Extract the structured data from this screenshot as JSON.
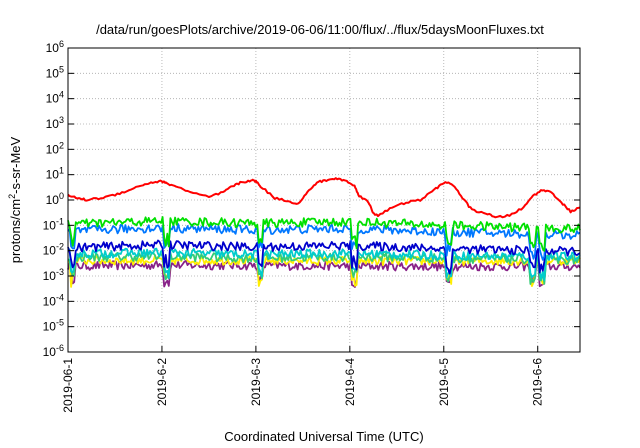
{
  "chart_data": {
    "type": "line",
    "title": "/data/run/goesPlots/archive/2019-06-06/11:00/flux/../flux/5daysMoonFluxes.txt",
    "xlabel": "Coordinated Universal Time (UTC)",
    "ylabel": "protons/cm²-s-sr-MeV",
    "ylabel_parts": {
      "pre": "protons/cm",
      "sup": "2",
      "post": "-s-sr-MeV"
    },
    "yscale": "log",
    "ylim_exp": [
      -6,
      6
    ],
    "y_ticks": [
      {
        "base": "10",
        "exp": "-6"
      },
      {
        "base": "10",
        "exp": "-5"
      },
      {
        "base": "10",
        "exp": "-4"
      },
      {
        "base": "10",
        "exp": "-3"
      },
      {
        "base": "10",
        "exp": "-2"
      },
      {
        "base": "10",
        "exp": "-1"
      },
      {
        "base": "10",
        "exp": "0"
      },
      {
        "base": "10",
        "exp": "1"
      },
      {
        "base": "10",
        "exp": "2"
      },
      {
        "base": "10",
        "exp": "3"
      },
      {
        "base": "10",
        "exp": "4"
      },
      {
        "base": "10",
        "exp": "5"
      },
      {
        "base": "10",
        "exp": "6"
      }
    ],
    "x_ticks": [
      "2019-06-1",
      "2019-6-2",
      "2019-6-3",
      "2019-6-4",
      "2019-6-5",
      "2019-6-6"
    ],
    "xlim_days": [
      0,
      5.45
    ],
    "grid": true,
    "series": [
      {
        "color": "#ff0000",
        "x_day": [
          0,
          0.1,
          0.2,
          0.35,
          0.5,
          0.65,
          0.8,
          0.9,
          1.0,
          1.05,
          1.15,
          1.3,
          1.5,
          1.65,
          1.75,
          1.85,
          1.95,
          2.0,
          2.05,
          2.2,
          2.35,
          2.45,
          2.55,
          2.65,
          2.75,
          2.85,
          2.95,
          3.05,
          3.1,
          3.2,
          3.25,
          3.3,
          3.45,
          3.6,
          3.75,
          3.9,
          4.0,
          4.1,
          4.2,
          4.3,
          4.45,
          4.55,
          4.7,
          4.85,
          4.95,
          5.05,
          5.15,
          5.25,
          5.35,
          5.45
        ],
        "y": [
          1.5,
          1.2,
          1.0,
          1.2,
          1.6,
          2.5,
          4,
          5,
          5.5,
          4.5,
          3.5,
          2.0,
          1.3,
          2.0,
          3.5,
          5,
          6,
          5.5,
          3.5,
          1.2,
          0.9,
          0.7,
          2.0,
          5,
          6,
          7,
          6,
          3.5,
          1.5,
          0.8,
          0.3,
          0.25,
          0.5,
          0.8,
          1.0,
          2.5,
          5,
          4,
          1.2,
          0.4,
          0.3,
          0.2,
          0.25,
          0.5,
          1.5,
          2.5,
          2.0,
          0.8,
          0.35,
          0.5
        ]
      },
      {
        "color": "#00e000",
        "base": [
          0.11,
          0.15,
          0.12,
          0.14,
          0.1,
          0.08
        ]
      },
      {
        "color": "#0077ff",
        "base": [
          0.06,
          0.08,
          0.065,
          0.075,
          0.055,
          0.045
        ]
      },
      {
        "color": "#0000cc",
        "base": [
          0.013,
          0.017,
          0.014,
          0.016,
          0.012,
          0.01
        ]
      },
      {
        "color": "#00cccc",
        "base": [
          0.0075,
          0.0085,
          0.007,
          0.008,
          0.0065,
          0.006
        ]
      },
      {
        "color": "#33cc77",
        "base": [
          0.0055,
          0.006,
          0.005,
          0.0058,
          0.005,
          0.0045
        ]
      },
      {
        "color": "#ffee00",
        "base": [
          0.004,
          0.0042,
          0.0041,
          0.004,
          0.0039,
          0.004
        ]
      },
      {
        "color": "#882288",
        "base": [
          0.0025,
          0.0027,
          0.0026,
          0.0025,
          0.0024,
          0.0024
        ]
      }
    ]
  }
}
